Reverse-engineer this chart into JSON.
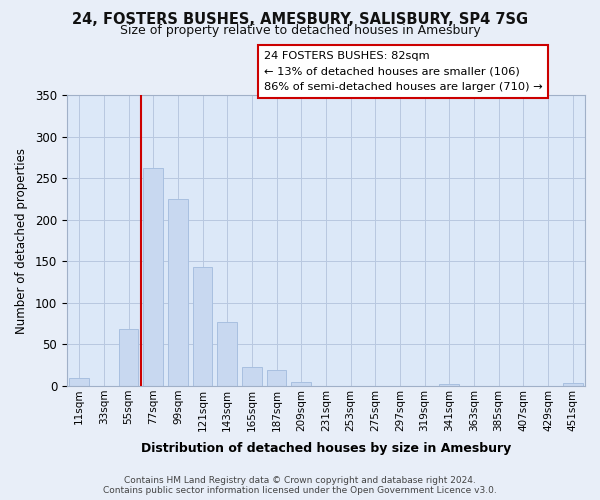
{
  "title": "24, FOSTERS BUSHES, AMESBURY, SALISBURY, SP4 7SG",
  "subtitle": "Size of property relative to detached houses in Amesbury",
  "xlabel": "Distribution of detached houses by size in Amesbury",
  "ylabel": "Number of detached properties",
  "bar_color": "#c8d8f0",
  "bar_edge_color": "#a8c0e0",
  "categories": [
    "11sqm",
    "33sqm",
    "55sqm",
    "77sqm",
    "99sqm",
    "121sqm",
    "143sqm",
    "165sqm",
    "187sqm",
    "209sqm",
    "231sqm",
    "253sqm",
    "275sqm",
    "297sqm",
    "319sqm",
    "341sqm",
    "363sqm",
    "385sqm",
    "407sqm",
    "429sqm",
    "451sqm"
  ],
  "values": [
    10,
    0,
    68,
    262,
    225,
    143,
    77,
    23,
    19,
    5,
    0,
    0,
    0,
    0,
    0,
    2,
    0,
    0,
    0,
    0,
    3
  ],
  "ylim": [
    0,
    350
  ],
  "yticks": [
    0,
    50,
    100,
    150,
    200,
    250,
    300,
    350
  ],
  "vline_color": "#cc0000",
  "vline_x": 2.5,
  "annotation_lines": [
    "24 FOSTERS BUSHES: 82sqm",
    "← 13% of detached houses are smaller (106)",
    "86% of semi-detached houses are larger (710) →"
  ],
  "footer_line1": "Contains HM Land Registry data © Crown copyright and database right 2024.",
  "footer_line2": "Contains public sector information licensed under the Open Government Licence v3.0.",
  "background_color": "#e8eef8",
  "plot_background_color": "#dce8f8"
}
